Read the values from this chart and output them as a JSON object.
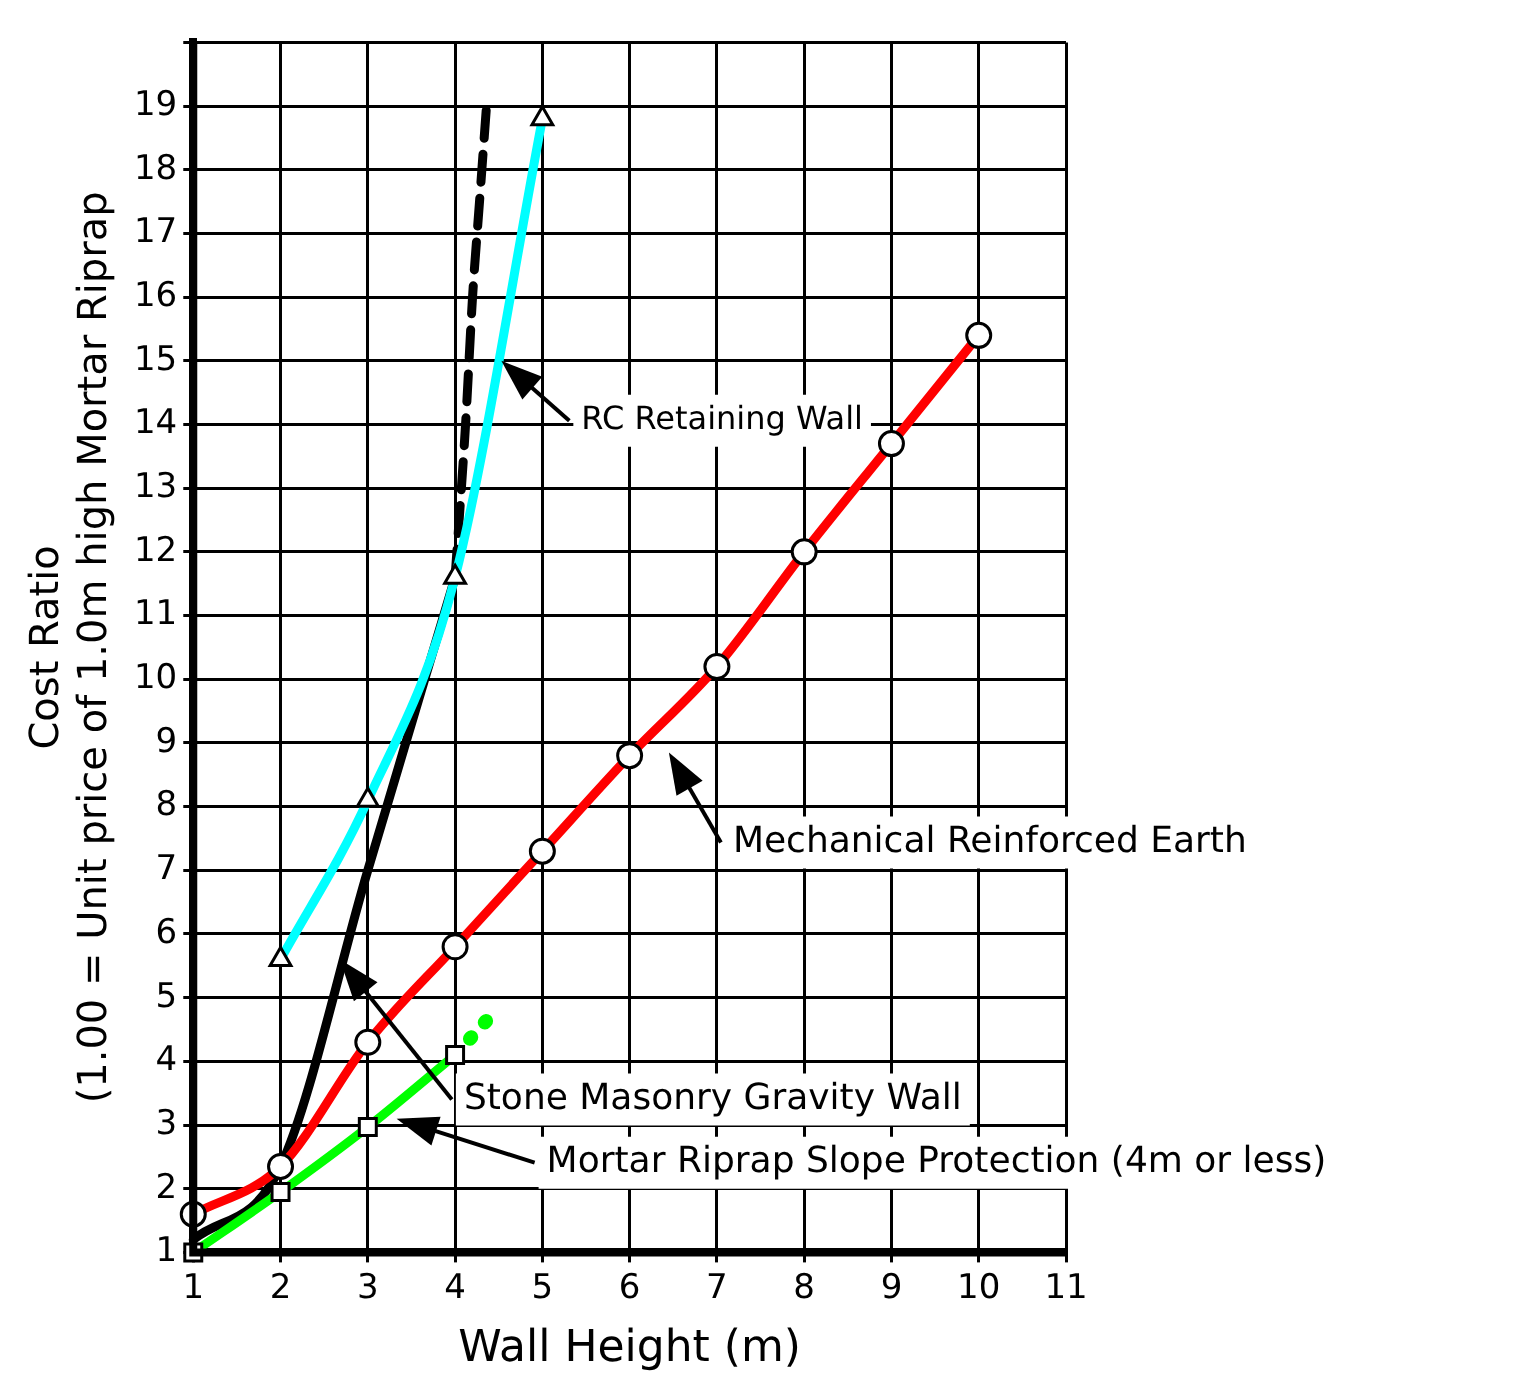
{
  "chart_data": {
    "type": "line",
    "xlabel": "Wall Height (m)",
    "ylabel": "Cost Ratio\n(1.00 = Unit price of 1.0m high Mortar Riprap",
    "xlim": [
      1,
      11
    ],
    "xticks": [
      1,
      2,
      3,
      4,
      5,
      6,
      7,
      8,
      9,
      10,
      11
    ],
    "ylim": [
      1,
      20
    ],
    "yticks": [
      1,
      2,
      3,
      4,
      5,
      6,
      7,
      8,
      9,
      10,
      11,
      12,
      13,
      14,
      15,
      16,
      17,
      18,
      19,
      {
        "value": 20,
        "label": null
      }
    ],
    "grid": true,
    "legend": false,
    "series": [
      {
        "color": "#ff0000",
        "marker": "circle",
        "line_style": "solid",
        "x": [
          1,
          2,
          3,
          4,
          5,
          6,
          7,
          8,
          9,
          10
        ],
        "values": [
          1.6,
          2.35,
          4.3,
          5.8,
          7.3,
          8.8,
          10.2,
          12.0,
          13.7,
          15.4
        ]
      },
      {
        "color": "#00ff00",
        "marker": "square",
        "line_style": "solid",
        "x": [
          1,
          2,
          3,
          4
        ],
        "values": [
          1.0,
          1.95,
          2.97,
          4.1
        ]
      },
      {
        "color": "#00ff00",
        "line_style": "dotted",
        "x": [
          4,
          4.2,
          4.4
        ],
        "values": [
          4.1,
          4.4,
          4.7
        ]
      },
      {
        "color": "#00ffff",
        "marker": "triangle",
        "line_style": "solid",
        "x": [
          2,
          3,
          4,
          5
        ],
        "values": [
          5.6,
          8.1,
          11.6,
          18.8
        ]
      },
      {
        "color": "#000000",
        "line_style": "solid",
        "x": [
          1,
          2,
          3,
          4
        ],
        "values": [
          1.2,
          2.35,
          7.0,
          11.6
        ]
      },
      {
        "color": "#000000",
        "line_style": "dashed",
        "x": [
          4,
          4.12,
          4.2,
          4.28,
          4.36
        ],
        "values": [
          11.6,
          14,
          16,
          17.5,
          19.0
        ]
      }
    ],
    "annotations": [
      "RC Retaining Wall",
      "Mechanical Reinforced Earth",
      "Stone Masonry Gravity Wall",
      "Mortar Riprap Slope Protection (4m or less)"
    ]
  }
}
